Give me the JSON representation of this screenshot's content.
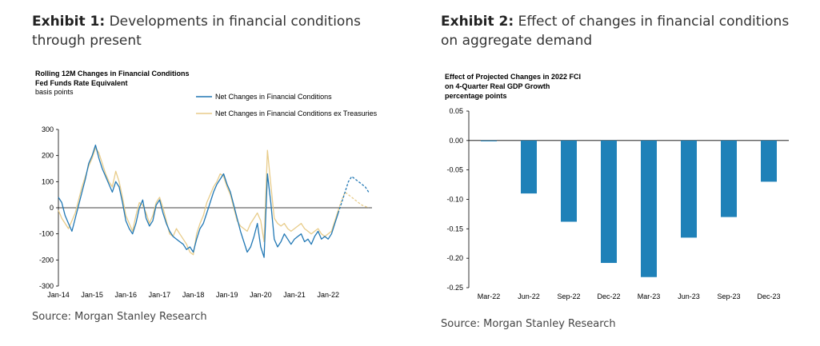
{
  "exhibit1": {
    "label": "Exhibit 1:",
    "title": "Developments in financial conditions through present",
    "source": "Source: Morgan Stanley Research",
    "colors": {
      "net": "#2077b4",
      "ex_treasuries": "#e8cc8a"
    }
  },
  "exhibit2": {
    "label": "Exhibit 2:",
    "title": "Effect of changes in financial conditions on aggregate demand",
    "source": "Source: Morgan Stanley Research",
    "colors": {
      "bar": "#1f81b8"
    }
  },
  "chart_data": [
    {
      "type": "line",
      "title": "Rolling 12M Changes in Financial Conditions",
      "subtitle": "Fed Funds Rate Equivalent",
      "ylabel": "basis points",
      "ylim": [
        -300,
        300
      ],
      "yticks": [
        "300",
        "200",
        "100",
        "0",
        "-100",
        "-200",
        "-300"
      ],
      "xticks": [
        "Jan-14",
        "Jan-15",
        "Jan-16",
        "Jan-17",
        "Jan-18",
        "Jan-19",
        "Jan-20",
        "Jan-21",
        "Jan-22"
      ],
      "xlim": [
        2014.0,
        2023.3
      ],
      "legend_position": "top-right",
      "series": [
        {
          "name": "Net Changes in Financial Conditions",
          "style": "solid-then-dashed",
          "x": [
            2014.0,
            2014.1,
            2014.2,
            2014.3,
            2014.4,
            2014.5,
            2014.6,
            2014.7,
            2014.8,
            2014.9,
            2015.0,
            2015.1,
            2015.2,
            2015.3,
            2015.4,
            2015.5,
            2015.6,
            2015.7,
            2015.8,
            2015.9,
            2016.0,
            2016.1,
            2016.2,
            2016.3,
            2016.4,
            2016.5,
            2016.6,
            2016.7,
            2016.8,
            2016.9,
            2017.0,
            2017.1,
            2017.2,
            2017.3,
            2017.4,
            2017.5,
            2017.6,
            2017.7,
            2017.8,
            2017.9,
            2018.0,
            2018.1,
            2018.2,
            2018.3,
            2018.4,
            2018.5,
            2018.6,
            2018.7,
            2018.8,
            2018.9,
            2019.0,
            2019.1,
            2019.2,
            2019.3,
            2019.4,
            2019.5,
            2019.6,
            2019.7,
            2019.8,
            2019.9,
            2020.0,
            2020.1,
            2020.2,
            2020.3,
            2020.4,
            2020.5,
            2020.6,
            2020.7,
            2020.8,
            2020.9,
            2021.0,
            2021.1,
            2021.2,
            2021.3,
            2021.4,
            2021.5,
            2021.6,
            2021.7,
            2021.8,
            2021.9,
            2022.0,
            2022.1,
            2022.2,
            2022.3,
            2022.4,
            2022.5,
            2022.6,
            2022.7,
            2022.8,
            2022.9,
            2023.0,
            2023.1,
            2023.2
          ],
          "y": [
            40,
            20,
            -30,
            -60,
            -90,
            -40,
            10,
            60,
            110,
            170,
            200,
            240,
            190,
            150,
            120,
            90,
            60,
            100,
            80,
            20,
            -50,
            -80,
            -100,
            -60,
            0,
            30,
            -40,
            -70,
            -50,
            10,
            30,
            -20,
            -60,
            -90,
            -110,
            -120,
            -130,
            -140,
            -160,
            -150,
            -170,
            -120,
            -80,
            -60,
            -20,
            20,
            60,
            90,
            110,
            130,
            90,
            60,
            10,
            -40,
            -90,
            -130,
            -170,
            -150,
            -110,
            -60,
            -150,
            -190,
            130,
            20,
            -120,
            -150,
            -130,
            -100,
            -120,
            -140,
            -120,
            -110,
            -100,
            -130,
            -120,
            -140,
            -110,
            -90,
            -120,
            -110,
            -120,
            -100,
            -60,
            -20,
            20,
            60,
            100,
            120,
            110,
            100,
            90,
            80,
            60
          ],
          "dashed_from_x": 2022.3
        },
        {
          "name": "Net Changes in Financial Conditions ex Treasuries",
          "style": "solid-then-dashed",
          "x": [
            2014.0,
            2014.1,
            2014.2,
            2014.3,
            2014.4,
            2014.5,
            2014.6,
            2014.7,
            2014.8,
            2014.9,
            2015.0,
            2015.1,
            2015.2,
            2015.3,
            2015.4,
            2015.5,
            2015.6,
            2015.7,
            2015.8,
            2015.9,
            2016.0,
            2016.1,
            2016.2,
            2016.3,
            2016.4,
            2016.5,
            2016.6,
            2016.7,
            2016.8,
            2016.9,
            2017.0,
            2017.1,
            2017.2,
            2017.3,
            2017.4,
            2017.5,
            2017.6,
            2017.7,
            2017.8,
            2017.9,
            2018.0,
            2018.1,
            2018.2,
            2018.3,
            2018.4,
            2018.5,
            2018.6,
            2018.7,
            2018.8,
            2018.9,
            2019.0,
            2019.1,
            2019.2,
            2019.3,
            2019.4,
            2019.5,
            2019.6,
            2019.7,
            2019.8,
            2019.9,
            2020.0,
            2020.1,
            2020.2,
            2020.3,
            2020.4,
            2020.5,
            2020.6,
            2020.7,
            2020.8,
            2020.9,
            2021.0,
            2021.1,
            2021.2,
            2021.3,
            2021.4,
            2021.5,
            2021.6,
            2021.7,
            2021.8,
            2021.9,
            2022.0,
            2022.1,
            2022.2,
            2022.3,
            2022.4,
            2022.5,
            2022.6,
            2022.7,
            2022.8,
            2022.9,
            2023.0,
            2023.1,
            2023.2
          ],
          "y": [
            -10,
            -40,
            -60,
            -80,
            -50,
            -20,
            30,
            80,
            120,
            160,
            190,
            230,
            210,
            170,
            130,
            100,
            80,
            140,
            100,
            40,
            -30,
            -60,
            -90,
            -30,
            20,
            10,
            -20,
            -60,
            -30,
            20,
            40,
            0,
            -50,
            -100,
            -110,
            -80,
            -100,
            -120,
            -140,
            -170,
            -180,
            -100,
            -60,
            -30,
            20,
            50,
            80,
            100,
            130,
            120,
            80,
            50,
            0,
            -50,
            -70,
            -80,
            -90,
            -60,
            -40,
            -20,
            -50,
            -130,
            220,
            90,
            -40,
            -60,
            -70,
            -60,
            -80,
            -90,
            -80,
            -70,
            -60,
            -80,
            -90,
            -100,
            -90,
            -80,
            -100,
            -110,
            -100,
            -90,
            -50,
            -10,
            30,
            60,
            50,
            40,
            30,
            20,
            10,
            5,
            0
          ],
          "dashed_from_x": 2022.3
        }
      ]
    },
    {
      "type": "bar",
      "title": "Effect of Projected Changes in 2022 FCI",
      "subtitle": "on 4-Quarter Real GDP Growth",
      "ylabel": "percentage points",
      "ylim": [
        -0.25,
        0.05
      ],
      "yticks": [
        "0.05",
        "0.00",
        "-0.05",
        "-0.10",
        "-0.15",
        "-0.20",
        "-0.25"
      ],
      "categories": [
        "Mar-22",
        "Jun-22",
        "Sep-22",
        "Dec-22",
        "Mar-23",
        "Jun-23",
        "Sep-23",
        "Dec-23"
      ],
      "values": [
        0.0,
        -0.09,
        -0.138,
        -0.208,
        -0.232,
        -0.165,
        -0.13,
        -0.07
      ]
    }
  ]
}
